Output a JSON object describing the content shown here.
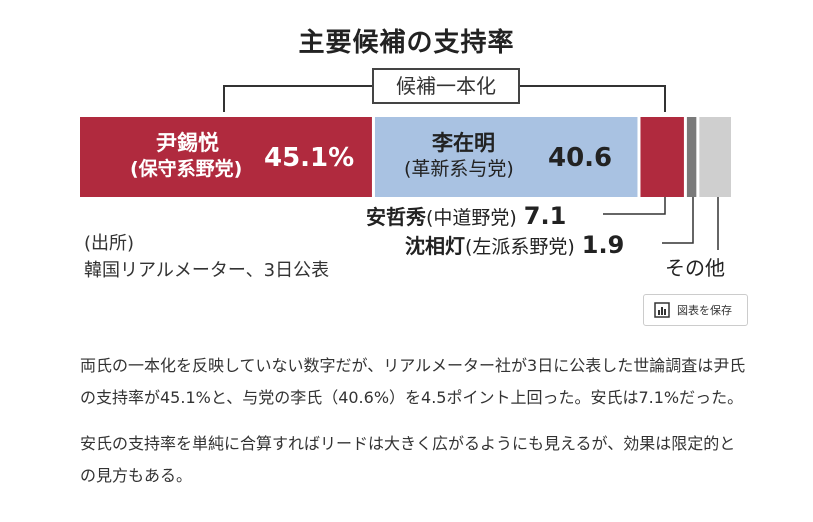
{
  "chart_data": {
    "type": "bar",
    "stacked": true,
    "orientation": "horizontal",
    "title": "主要候補の支持率",
    "group_label": "候補一本化",
    "unit": "%",
    "series": [
      {
        "name": "尹錫悦",
        "party": "(保守系野党)",
        "value": 45.1,
        "value_label": "45.1%",
        "color": "#b02a3e"
      },
      {
        "name": "李在明",
        "party": "(革新系与党)",
        "value": 40.6,
        "value_label": "40.6",
        "color": "#a9c2e2"
      },
      {
        "name": "安哲秀",
        "party": "(中道野党)",
        "value": 7.1,
        "value_label": "7.1",
        "color": "#b02a3e"
      },
      {
        "name": "沈相灯",
        "party": "(左派系野党)",
        "value": 1.9,
        "value_label": "1.9",
        "color": "#7a7a7a"
      },
      {
        "name": "その他",
        "value": 5.3,
        "color": "#cfcfcf"
      }
    ],
    "source": [
      "(出所)",
      "韓国リアルメーター、3日公表"
    ]
  },
  "toolbar": {
    "save_label": "図表を保存",
    "icon": "bar-chart-icon"
  },
  "article": {
    "paragraphs": [
      "両氏の一本化を反映していない数字だが、リアルメーター社が3日に公表した世論調査は尹氏の支持率が45.1%と、与党の李氏（40.6%）を4.5ポイント上回った。安氏は7.1%だった。",
      "安氏の支持率を単純に合算すればリードは大きく広がるようにも見えるが、効果は限定的との見方もある。"
    ]
  }
}
